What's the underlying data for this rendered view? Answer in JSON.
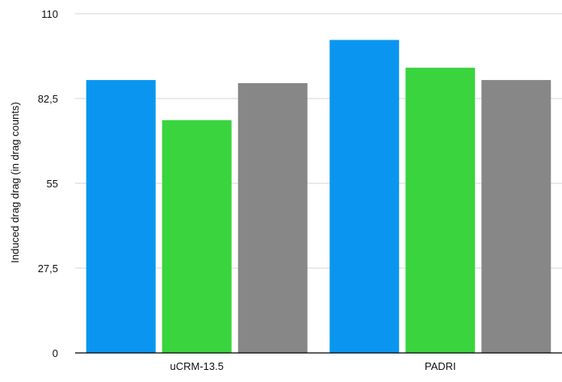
{
  "chart_data": {
    "type": "bar",
    "title": "",
    "xlabel": "",
    "ylabel": "Induced drag drag (in drag counts)",
    "categories": [
      "uCRM-13.5",
      "PADRI"
    ],
    "series": [
      {
        "values": [
          88.5,
          101.5
        ],
        "color": "#0a96f0"
      },
      {
        "values": [
          75.5,
          92.5
        ],
        "color": "#39d43e"
      },
      {
        "values": [
          87.5,
          88.5
        ],
        "color": "#878787"
      }
    ],
    "ylim": [
      0,
      110
    ],
    "yticks": [
      0,
      27.5,
      55,
      82.5,
      110
    ],
    "ytick_labels": [
      "0",
      "27,5",
      "55",
      "82,5",
      "110"
    ],
    "grid": true,
    "legend": "none"
  }
}
